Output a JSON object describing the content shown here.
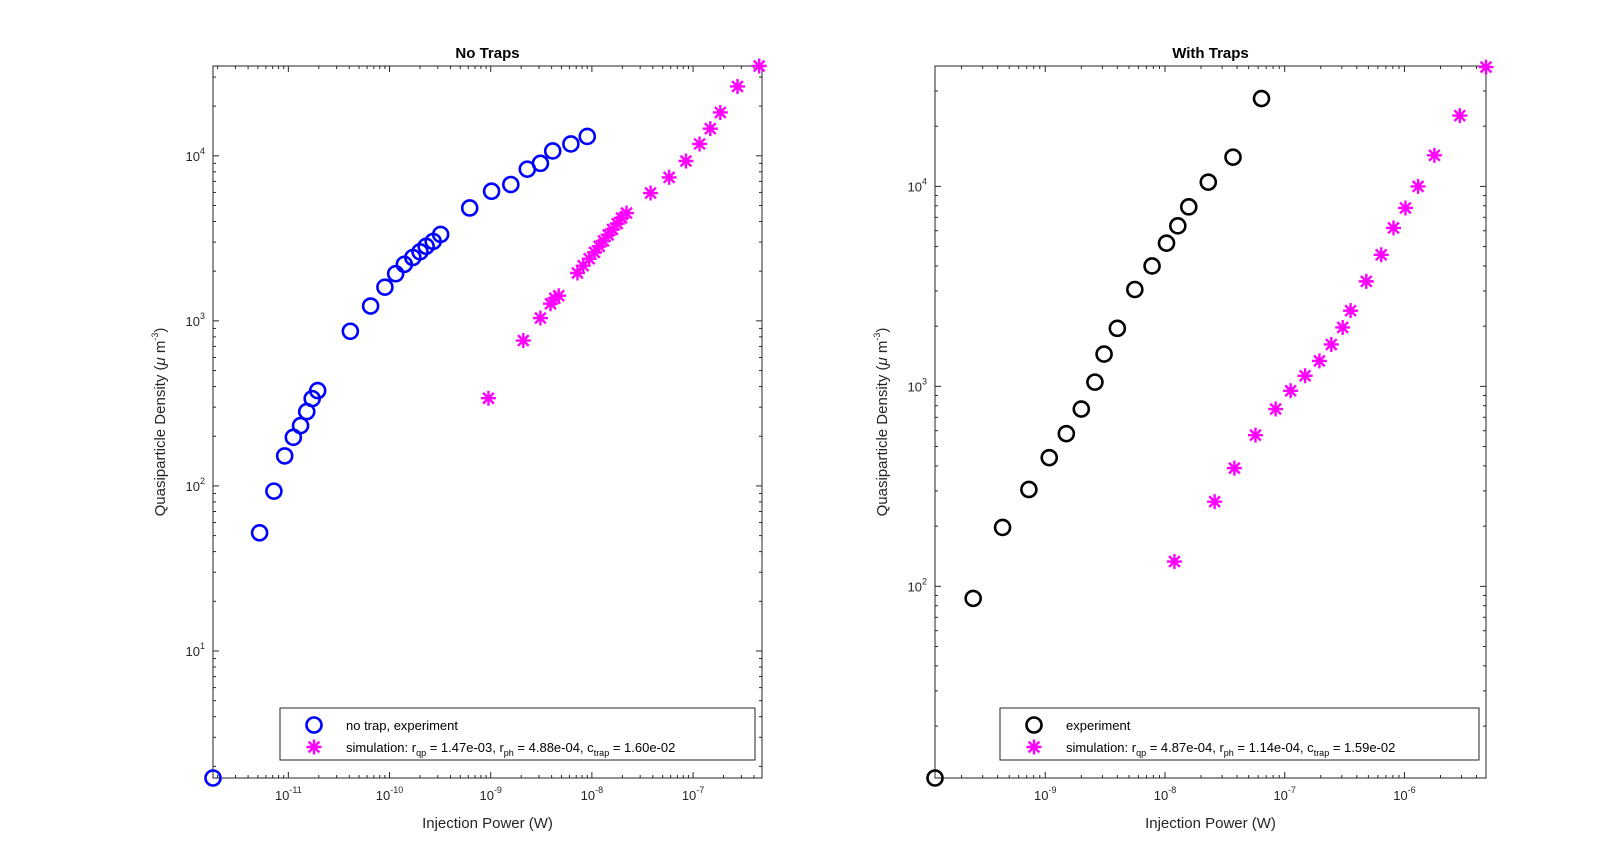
{
  "chart_data": [
    {
      "type": "scatter",
      "title": "No Traps",
      "xlabel": "Injection Power (W)",
      "ylabel_main": "Quasiparticle Density (",
      "ylabel_mu": "μ",
      "ylabel_unit": " m",
      "ylabel_exp": "-3",
      "ylabel_close": ")",
      "x_scale": "log",
      "y_scale": "log",
      "xlim": [
        1.8e-12,
        4.8e-07
      ],
      "ylim": [
        1.7,
        35000
      ],
      "xticks": [
        1e-11,
        1e-10,
        1e-09,
        1e-08,
        1e-07
      ],
      "xtick_labels": [
        {
          "base": "10",
          "exp": "-11"
        },
        {
          "base": "10",
          "exp": "-10"
        },
        {
          "base": "10",
          "exp": "-9"
        },
        {
          "base": "10",
          "exp": "-8"
        },
        {
          "base": "10",
          "exp": "-7"
        }
      ],
      "yticks": [
        10,
        100,
        1000,
        10000
      ],
      "ytick_labels": [
        {
          "base": "10",
          "exp": "1"
        },
        {
          "base": "10",
          "exp": "2"
        },
        {
          "base": "10",
          "exp": "3"
        },
        {
          "base": "10",
          "exp": "4"
        }
      ],
      "grid": true,
      "legend_position": "bottom-right",
      "series": [
        {
          "name": "no trap, experiment",
          "marker": "circle",
          "color": "#0000ff",
          "x": [
            1.8e-12,
            5.2e-12,
            7.2e-12,
            9.2e-12,
            1.12e-11,
            1.32e-11,
            1.52e-11,
            1.72e-11,
            1.95e-11,
            4.1e-11,
            6.5e-11,
            9e-11,
            1.15e-10,
            1.4e-10,
            1.7e-10,
            2e-10,
            2.3e-10,
            2.7e-10,
            3.2e-10,
            6.2e-10,
            1.02e-09,
            1.58e-09,
            2.3e-09,
            3.1e-09,
            4.1e-09,
            6.2e-09,
            9e-09
          ],
          "y": [
            1.7,
            52,
            93,
            152,
            197,
            232,
            282,
            338,
            378,
            865,
            1230,
            1600,
            1930,
            2200,
            2420,
            2620,
            2830,
            3030,
            3340,
            4830,
            6100,
            6700,
            8300,
            9000,
            10700,
            11800,
            13100
          ]
        },
        {
          "name_prefix": "simulation: r",
          "name_sub1": "qp",
          "name_mid1": " = 1.47e-03, r",
          "name_sub2": "ph",
          "name_mid2": " = 4.88e-04, c",
          "name_sub3": "trap",
          "name_suffix": " = 1.60e-02",
          "marker": "asterisk",
          "color": "#ff00ff",
          "x": [
            9.5e-10,
            2.1e-09,
            3.1e-09,
            3.9e-09,
            4.3e-09,
            4.7e-09,
            7.2e-09,
            8.2e-09,
            9.4e-09,
            1.06e-08,
            1.18e-08,
            1.3e-08,
            1.45e-08,
            1.6e-08,
            1.78e-08,
            1.96e-08,
            2.2e-08,
            3.8e-08,
            5.8e-08,
            8.5e-08,
            1.16e-07,
            1.48e-07,
            1.86e-07,
            2.75e-07,
            4.5e-07
          ],
          "y": [
            340,
            760,
            1040,
            1270,
            1370,
            1420,
            1950,
            2160,
            2380,
            2600,
            2830,
            3050,
            3320,
            3580,
            3880,
            4200,
            4500,
            5950,
            7400,
            9300,
            11800,
            14600,
            18300,
            26300,
            35000
          ]
        }
      ]
    },
    {
      "type": "scatter",
      "title": "With Traps",
      "xlabel": "Injection Power (W)",
      "ylabel_main": "Quasiparticle Density (",
      "ylabel_mu": "μ",
      "ylabel_unit": " m",
      "ylabel_exp": "-3",
      "ylabel_close": ")",
      "x_scale": "log",
      "y_scale": "log",
      "xlim": [
        1.2e-10,
        4.8e-06
      ],
      "ylim": [
        11,
        40000
      ],
      "xticks": [
        1e-09,
        1e-08,
        1e-07,
        1e-06
      ],
      "xtick_labels": [
        {
          "base": "10",
          "exp": "-9"
        },
        {
          "base": "10",
          "exp": "-8"
        },
        {
          "base": "10",
          "exp": "-7"
        },
        {
          "base": "10",
          "exp": "-6"
        }
      ],
      "yticks": [
        100,
        1000,
        10000
      ],
      "ytick_labels": [
        {
          "base": "10",
          "exp": "2"
        },
        {
          "base": "10",
          "exp": "3"
        },
        {
          "base": "10",
          "exp": "4"
        }
      ],
      "grid": true,
      "legend_position": "bottom-right",
      "series": [
        {
          "name": "experiment",
          "marker": "circle",
          "color": "#000000",
          "x": [
            1.2e-10,
            2.5e-10,
            4.4e-10,
            7.3e-10,
            1.08e-09,
            1.5e-09,
            2e-09,
            2.6e-09,
            3.1e-09,
            4e-09,
            5.6e-09,
            7.8e-09,
            1.03e-08,
            1.28e-08,
            1.58e-08,
            2.3e-08,
            3.7e-08,
            6.4e-08
          ],
          "y": [
            11,
            87,
            197,
            305,
            440,
            580,
            770,
            1050,
            1450,
            1950,
            3050,
            4000,
            5200,
            6350,
            7900,
            10500,
            14000,
            27500
          ]
        },
        {
          "name_prefix": "simulation: r",
          "name_sub1": "qp",
          "name_mid1": " = 4.87e-04, r",
          "name_sub2": "ph",
          "name_mid2": " = 1.14e-04, c",
          "name_sub3": "trap",
          "name_suffix": " = 1.59e-02",
          "marker": "asterisk",
          "color": "#ff00ff",
          "x": [
            1.2e-08,
            2.6e-08,
            3.8e-08,
            5.7e-08,
            8.4e-08,
            1.12e-07,
            1.48e-07,
            1.95e-07,
            2.45e-07,
            3.05e-07,
            3.55e-07,
            4.8e-07,
            6.4e-07,
            8.1e-07,
            1.02e-06,
            1.3e-06,
            1.78e-06,
            2.9e-06,
            4.8e-06
          ],
          "y": [
            133,
            265,
            390,
            570,
            770,
            950,
            1130,
            1340,
            1620,
            1970,
            2390,
            3350,
            4550,
            6200,
            7800,
            10000,
            14300,
            22600,
            39500
          ]
        }
      ]
    }
  ]
}
